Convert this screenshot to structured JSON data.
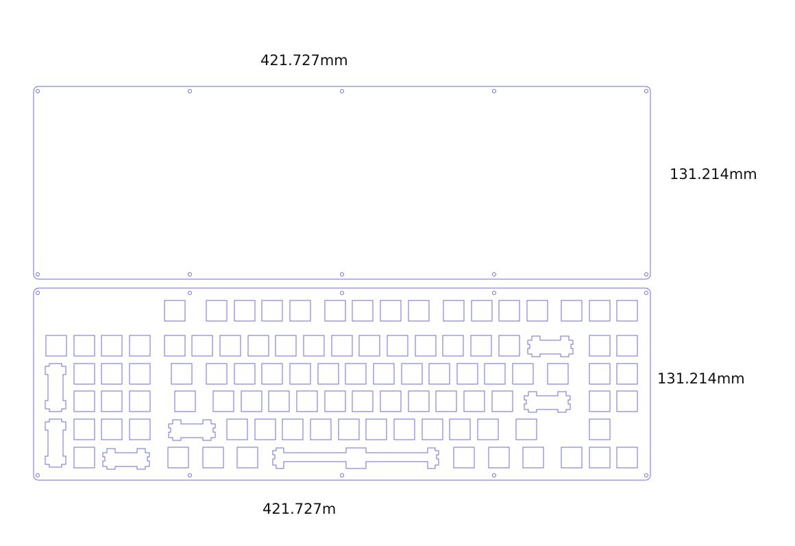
{
  "dimensions": {
    "top_width": "421.727mm",
    "top_height": "131.214mm",
    "bottom_height": "131.214mm",
    "bottom_width": "421.727m"
  },
  "colors": {
    "line": "#6b6bd6",
    "background": "#ffffff",
    "text": "#111111"
  }
}
